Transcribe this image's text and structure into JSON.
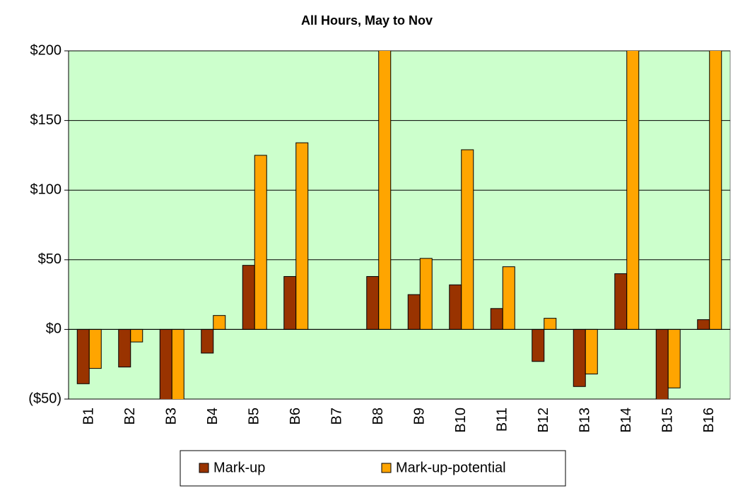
{
  "chart_data": {
    "type": "bar",
    "title": "All Hours, May to Nov",
    "categories": [
      "B1",
      "B2",
      "B3",
      "B4",
      "B5",
      "B6",
      "B7",
      "B8",
      "B9",
      "B10",
      "B11",
      "B12",
      "B13",
      "B14",
      "B15",
      "B16"
    ],
    "series": [
      {
        "name": "Mark-up",
        "color": "#993300",
        "values": [
          -39,
          -27,
          -55,
          -17,
          46,
          38,
          0,
          38,
          25,
          32,
          15,
          -23,
          -41,
          40,
          -51,
          7
        ]
      },
      {
        "name": "Mark-up-potential",
        "color": "#ffa500",
        "values": [
          -28,
          -9,
          -55,
          10,
          125,
          134,
          0,
          210,
          51,
          129,
          45,
          8,
          -32,
          210,
          -42,
          201
        ]
      }
    ],
    "ylim": [
      -50,
      200
    ],
    "yticks": [
      {
        "value": -50,
        "label": "($50)"
      },
      {
        "value": 0,
        "label": "$0"
      },
      {
        "value": 50,
        "label": "$50"
      },
      {
        "value": 100,
        "label": "$100"
      },
      {
        "value": 150,
        "label": "$150"
      },
      {
        "value": 200,
        "label": "$200"
      }
    ],
    "grid": true,
    "plot_background": "#ccffcc",
    "legend": "bottom"
  }
}
